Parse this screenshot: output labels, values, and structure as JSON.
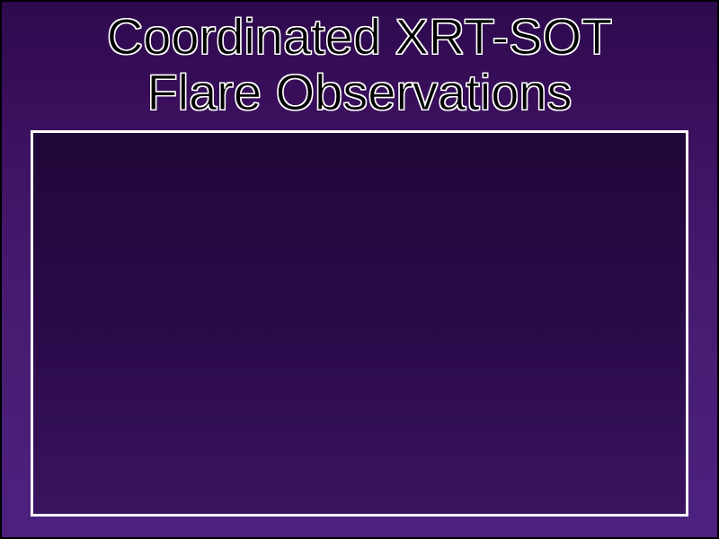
{
  "slide": {
    "title_line1": "Coordinated XRT-SOT",
    "title_line2": "Flare Observations",
    "title_color": "#000000",
    "title_outline_color": "#ffffff",
    "title_fontsize": 56,
    "title_font_family": "Arial",
    "background_gradient_top": "#2d0a4d",
    "background_gradient_bottom": "#4d2080",
    "content_box_border_color": "#ffffff",
    "content_box_border_width": 3,
    "content_box_background_top": "#200838",
    "content_box_background_bottom": "#3a1560",
    "slide_border_color": "#000000",
    "slide_width": 800,
    "slide_height": 600
  }
}
